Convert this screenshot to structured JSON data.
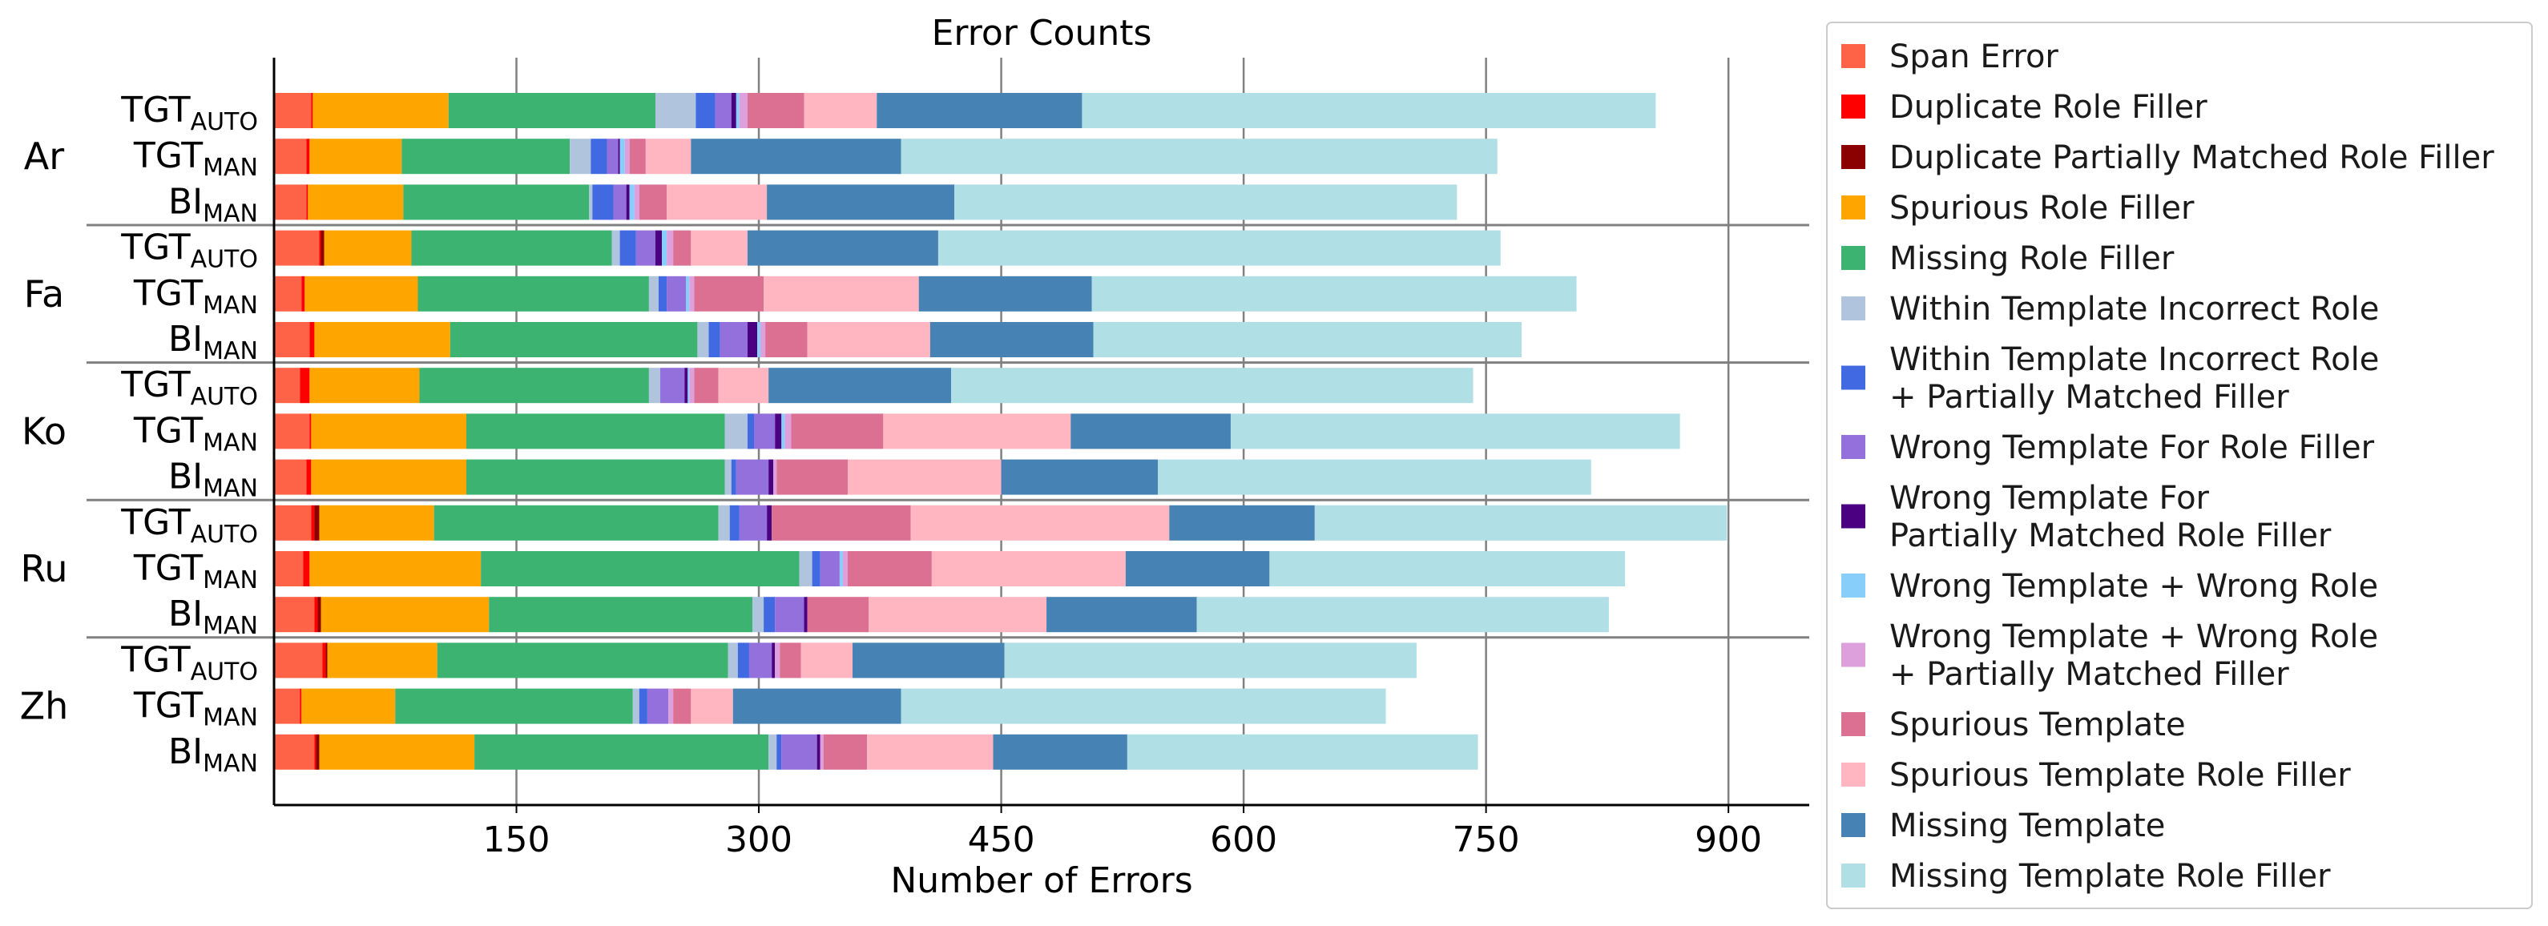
{
  "chart_data": {
    "type": "bar",
    "orientation": "horizontal",
    "stacked": true,
    "title": "Error Counts",
    "xlabel": "Number of Errors",
    "ylabel": "",
    "xlim": [
      0,
      950
    ],
    "x_ticks": [
      150,
      300,
      450,
      600,
      750,
      900
    ],
    "grid": "vertical",
    "legend_position": "right",
    "groups": [
      {
        "name": "Ar",
        "rows": [
          0,
          1,
          2
        ]
      },
      {
        "name": "Fa",
        "rows": [
          3,
          4,
          5
        ]
      },
      {
        "name": "Ko",
        "rows": [
          6,
          7,
          8
        ]
      },
      {
        "name": "Ru",
        "rows": [
          9,
          10,
          11
        ]
      },
      {
        "name": "Zh",
        "rows": [
          12,
          13,
          14
        ]
      }
    ],
    "categories": [
      {
        "main": "TGT",
        "sub": "AUTO"
      },
      {
        "main": "TGT",
        "sub": "MAN"
      },
      {
        "main": "BI",
        "sub": "MAN"
      },
      {
        "main": "TGT",
        "sub": "AUTO"
      },
      {
        "main": "TGT",
        "sub": "MAN"
      },
      {
        "main": "BI",
        "sub": "MAN"
      },
      {
        "main": "TGT",
        "sub": "AUTO"
      },
      {
        "main": "TGT",
        "sub": "MAN"
      },
      {
        "main": "BI",
        "sub": "MAN"
      },
      {
        "main": "TGT",
        "sub": "AUTO"
      },
      {
        "main": "TGT",
        "sub": "MAN"
      },
      {
        "main": "BI",
        "sub": "MAN"
      },
      {
        "main": "TGT",
        "sub": "AUTO"
      },
      {
        "main": "TGT",
        "sub": "MAN"
      },
      {
        "main": "BI",
        "sub": "MAN"
      }
    ],
    "series": [
      {
        "name": "Span Error",
        "color": "#ff6347",
        "values": [
          23,
          20,
          20,
          28,
          17,
          22,
          16,
          22,
          20,
          23,
          18,
          25,
          30,
          16,
          25
        ]
      },
      {
        "name": "Duplicate Role Filler",
        "color": "#ff0000",
        "values": [
          1,
          2,
          1,
          1,
          2,
          3,
          6,
          1,
          3,
          2,
          4,
          2,
          2,
          1,
          1
        ]
      },
      {
        "name": "Duplicate Partially Matched Role Filler",
        "color": "#8b0000",
        "values": [
          0,
          0,
          0,
          2,
          0,
          0,
          0,
          0,
          0,
          3,
          0,
          2,
          1,
          0,
          2
        ]
      },
      {
        "name": "Spurious Role Filler",
        "color": "#ffa500",
        "values": [
          84,
          57,
          59,
          54,
          70,
          84,
          68,
          96,
          96,
          71,
          106,
          104,
          68,
          58,
          96
        ]
      },
      {
        "name": "Missing Role Filler",
        "color": "#3cb371",
        "values": [
          128,
          104,
          115,
          124,
          143,
          153,
          142,
          160,
          160,
          176,
          197,
          163,
          180,
          147,
          182
        ]
      },
      {
        "name": "Within Template Incorrect Role",
        "color": "#b0c4de",
        "values": [
          25,
          13,
          2,
          5,
          6,
          7,
          7,
          14,
          4,
          7,
          8,
          7,
          6,
          4,
          5
        ]
      },
      {
        "name": "Within Template Incorrect Role + Partially Matched Filler",
        "color": "#4169e1",
        "values": [
          12,
          10,
          13,
          10,
          5,
          7,
          0,
          4,
          3,
          6,
          5,
          7,
          7,
          5,
          3
        ]
      },
      {
        "name": "Wrong Template For Role Filler",
        "color": "#9370db",
        "values": [
          10,
          7,
          8,
          12,
          12,
          17,
          15,
          13,
          20,
          17,
          12,
          18,
          14,
          13,
          22
        ]
      },
      {
        "name": "Wrong Template For Partially Matched Role Filler",
        "color": "#4b0082",
        "values": [
          3,
          1,
          2,
          4,
          0,
          6,
          2,
          4,
          3,
          3,
          0,
          2,
          2,
          0,
          2
        ]
      },
      {
        "name": "Wrong Template + Wrong Role",
        "color": "#87cefa",
        "values": [
          2,
          3,
          3,
          3,
          2,
          2,
          1,
          2,
          0,
          0,
          2,
          0,
          0,
          0,
          0
        ]
      },
      {
        "name": "Wrong Template + Wrong Role + Partially Matched Filler",
        "color": "#dda0dd",
        "values": [
          5,
          3,
          3,
          4,
          3,
          3,
          3,
          4,
          2,
          0,
          3,
          0,
          3,
          3,
          2
        ]
      },
      {
        "name": "Spurious Template",
        "color": "#db7093",
        "values": [
          35,
          10,
          17,
          11,
          43,
          26,
          15,
          57,
          44,
          86,
          52,
          38,
          13,
          11,
          27
        ]
      },
      {
        "name": "Spurious Template Role Filler",
        "color": "#ffb6c1",
        "values": [
          45,
          28,
          62,
          35,
          96,
          76,
          31,
          116,
          95,
          160,
          120,
          110,
          32,
          26,
          78
        ]
      },
      {
        "name": "Missing Template",
        "color": "#4682b4",
        "values": [
          127,
          130,
          116,
          118,
          107,
          101,
          113,
          99,
          97,
          90,
          89,
          93,
          94,
          104,
          83
        ]
      },
      {
        "name": "Missing Template Role Filler",
        "color": "#b0e0e6",
        "values": [
          355,
          369,
          311,
          348,
          300,
          265,
          323,
          278,
          268,
          255,
          220,
          255,
          255,
          300,
          217
        ]
      }
    ]
  },
  "legend": {
    "entries": [
      {
        "lines": [
          "Span Error"
        ]
      },
      {
        "lines": [
          "Duplicate Role Filler"
        ]
      },
      {
        "lines": [
          "Duplicate Partially Matched Role Filler"
        ]
      },
      {
        "lines": [
          "Spurious Role Filler"
        ]
      },
      {
        "lines": [
          "Missing Role Filler"
        ]
      },
      {
        "lines": [
          "Within Template Incorrect Role"
        ]
      },
      {
        "lines": [
          "Within Template Incorrect Role",
          "+ Partially Matched Filler"
        ]
      },
      {
        "lines": [
          "Wrong Template For Role Filler"
        ]
      },
      {
        "lines": [
          "Wrong Template For",
          "Partially Matched Role Filler"
        ]
      },
      {
        "lines": [
          "Wrong Template + Wrong Role"
        ]
      },
      {
        "lines": [
          "Wrong Template + Wrong Role",
          "+ Partially Matched Filler"
        ]
      },
      {
        "lines": [
          "Spurious Template"
        ]
      },
      {
        "lines": [
          "Spurious Template Role Filler"
        ]
      },
      {
        "lines": [
          "Missing Template"
        ]
      },
      {
        "lines": [
          "Missing Template Role Filler"
        ]
      }
    ]
  }
}
